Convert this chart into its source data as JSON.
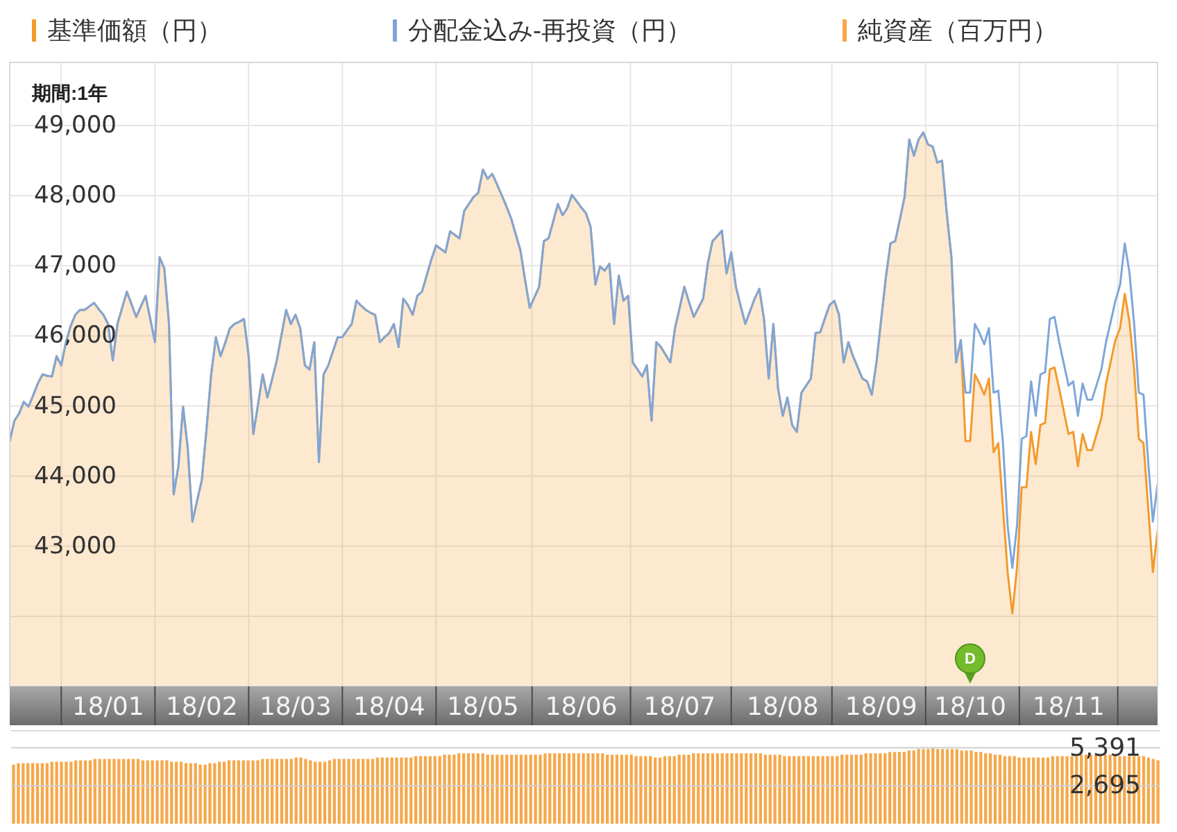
{
  "chart_data": [
    {
      "type": "area",
      "subtitle": "期間:1年",
      "legend": "top",
      "grid": true,
      "categories": [
        null,
        null,
        null,
        null,
        null,
        null,
        null,
        null,
        null,
        null,
        null,
        null,
        null,
        null,
        null,
        null,
        null,
        null,
        null,
        null,
        null,
        "18/01",
        null,
        null,
        null,
        null,
        null,
        null,
        null,
        null,
        null,
        null,
        null,
        null,
        null,
        null,
        null,
        null,
        null,
        null,
        null,
        "18/02",
        null,
        null,
        null,
        null,
        null,
        null,
        null,
        null,
        null,
        null,
        null,
        null,
        null,
        null,
        null,
        null,
        null,
        null,
        null,
        "18/03",
        null,
        null,
        null,
        null,
        null,
        null,
        null,
        null,
        null,
        null,
        null,
        null,
        null,
        null,
        null,
        null,
        null,
        null,
        null,
        "18/04",
        null,
        null,
        null,
        null,
        null,
        null,
        null,
        null,
        null,
        null,
        null,
        null,
        null,
        null,
        null,
        null,
        null,
        null,
        null,
        "18/05",
        null,
        null,
        null,
        null,
        null,
        null,
        null,
        null,
        null,
        null,
        null,
        null,
        null,
        null,
        null,
        null,
        null,
        null,
        null,
        null,
        "18/06",
        null,
        null,
        null,
        null,
        null,
        null,
        null,
        null,
        null,
        null,
        null,
        null,
        null,
        null,
        null,
        null,
        null,
        null,
        null,
        null,
        "18/07",
        null,
        null,
        null,
        null,
        null,
        null,
        null,
        null,
        null,
        null,
        null,
        null,
        null,
        null,
        null,
        null,
        null,
        null,
        null,
        null,
        null,
        "18/08",
        null,
        null,
        null,
        null,
        null,
        null,
        null,
        null,
        null,
        null,
        null,
        null,
        null,
        null,
        null,
        null,
        null,
        null,
        null,
        null,
        "18/09",
        null,
        null,
        null,
        null,
        null,
        null,
        null,
        null,
        null,
        null,
        null,
        null,
        null,
        null,
        null,
        null,
        null,
        null,
        "18/10",
        null,
        null,
        null,
        null,
        null,
        null,
        null,
        null,
        null,
        null,
        null,
        null,
        null,
        null,
        null,
        null,
        null,
        null,
        null,
        null,
        "18/11",
        null,
        null,
        null,
        null,
        null,
        null,
        null,
        null,
        null,
        null,
        null,
        null,
        null,
        null,
        null,
        null,
        null,
        null,
        null
      ],
      "ylim": [
        41000,
        49900
      ],
      "yticks": [
        {
          "value": 42000,
          "label": null
        },
        {
          "value": 43000,
          "label": "43,000"
        },
        {
          "value": 44000,
          "label": "44,000"
        },
        {
          "value": 45000,
          "label": "45,000"
        },
        {
          "value": 46000,
          "label": "46,000"
        },
        {
          "value": 47000,
          "label": "47,000"
        },
        {
          "value": 48000,
          "label": "48,000"
        },
        {
          "value": 49000,
          "label": "49,000"
        }
      ],
      "annotations": [
        {
          "text": "D",
          "x": "18/10"
        }
      ],
      "series": [
        {
          "name": "基準価額（円）",
          "color": "#f39a2b",
          "values": [
            44500,
            44790,
            44890,
            45060,
            44990,
            45150,
            45320,
            45450,
            45430,
            45420,
            45710,
            45580,
            45910,
            46140,
            46300,
            46370,
            46370,
            46420,
            46470,
            46380,
            46300,
            46170,
            45650,
            46170,
            46400,
            46630,
            46450,
            46270,
            46420,
            46570,
            46240,
            45910,
            47120,
            46960,
            46170,
            43740,
            44140,
            44990,
            44400,
            43350,
            43650,
            43940,
            44660,
            45450,
            45980,
            45710,
            45900,
            46110,
            46170,
            46200,
            46240,
            45710,
            44600,
            45020,
            45450,
            45120,
            45380,
            45650,
            46010,
            46370,
            46170,
            46300,
            46110,
            45580,
            45520,
            45910,
            44200,
            45450,
            45580,
            45780,
            45980,
            45980,
            46080,
            46170,
            46500,
            46430,
            46370,
            46330,
            46300,
            45910,
            45980,
            46040,
            46170,
            45840,
            46530,
            46440,
            46300,
            46570,
            46630,
            46860,
            47090,
            47290,
            47240,
            47190,
            47490,
            47440,
            47390,
            47780,
            47880,
            47980,
            48040,
            48370,
            48240,
            48310,
            48160,
            48010,
            47850,
            47680,
            47450,
            47220,
            46800,
            46400,
            46550,
            46700,
            47350,
            47390,
            47630,
            47880,
            47720,
            47820,
            48010,
            47920,
            47830,
            47750,
            47550,
            46730,
            46990,
            46930,
            47030,
            46170,
            46860,
            46500,
            46570,
            45620,
            45520,
            45420,
            45580,
            44790,
            45910,
            45840,
            45730,
            45620,
            46110,
            46400,
            46700,
            46480,
            46270,
            46400,
            46530,
            47030,
            47350,
            47420,
            47500,
            46890,
            47190,
            46700,
            46430,
            46170,
            46350,
            46530,
            46670,
            46240,
            45390,
            46170,
            45250,
            44860,
            45120,
            44730,
            44630,
            45190,
            45290,
            45390,
            46040,
            46050,
            46250,
            46440,
            46500,
            46300,
            45620,
            45910,
            45710,
            45550,
            45390,
            45350,
            45160,
            45620,
            46230,
            46830,
            47320,
            47350,
            47660,
            47980,
            48800,
            48570,
            48800,
            48900,
            48730,
            48700,
            48470,
            48500,
            47750,
            47120,
            45620,
            45940,
            44500,
            44500,
            45450,
            45320,
            45160,
            45390,
            44340,
            44470,
            43550,
            42630,
            42040,
            42690,
            43840,
            43840,
            44630,
            44170,
            44730,
            44760,
            45520,
            45550,
            45250,
            44920,
            44600,
            44630,
            44140,
            44600,
            44370,
            44370,
            44600,
            44830,
            45320,
            45630,
            45940,
            46110,
            46600,
            46200,
            45520,
            44530,
            44470,
            43550,
            42630,
            43220
          ]
        },
        {
          "name": "分配金込み-再投資（円）",
          "type": "line",
          "color": "#7fa6d9",
          "values": [
            44500,
            44790,
            44890,
            45060,
            44990,
            45150,
            45320,
            45450,
            45430,
            45420,
            45710,
            45580,
            45910,
            46140,
            46300,
            46370,
            46370,
            46420,
            46470,
            46380,
            46300,
            46170,
            45650,
            46170,
            46400,
            46630,
            46450,
            46270,
            46420,
            46570,
            46240,
            45910,
            47120,
            46960,
            46170,
            43740,
            44140,
            44990,
            44400,
            43350,
            43650,
            43940,
            44660,
            45450,
            45980,
            45710,
            45900,
            46110,
            46170,
            46200,
            46240,
            45710,
            44600,
            45020,
            45450,
            45120,
            45380,
            45650,
            46010,
            46370,
            46170,
            46300,
            46110,
            45580,
            45520,
            45910,
            44200,
            45450,
            45580,
            45780,
            45980,
            45980,
            46080,
            46170,
            46500,
            46430,
            46370,
            46330,
            46300,
            45910,
            45980,
            46040,
            46170,
            45840,
            46530,
            46440,
            46300,
            46570,
            46630,
            46860,
            47090,
            47290,
            47240,
            47190,
            47490,
            47440,
            47390,
            47780,
            47880,
            47980,
            48040,
            48370,
            48240,
            48310,
            48160,
            48010,
            47850,
            47680,
            47450,
            47220,
            46800,
            46400,
            46550,
            46700,
            47350,
            47390,
            47630,
            47880,
            47720,
            47820,
            48010,
            47920,
            47830,
            47750,
            47550,
            46730,
            46990,
            46930,
            47030,
            46170,
            46860,
            46500,
            46570,
            45620,
            45520,
            45420,
            45580,
            44790,
            45910,
            45840,
            45730,
            45620,
            46110,
            46400,
            46700,
            46480,
            46270,
            46400,
            46530,
            47030,
            47350,
            47420,
            47500,
            46890,
            47190,
            46700,
            46430,
            46170,
            46350,
            46530,
            46670,
            46240,
            45390,
            46170,
            45250,
            44860,
            45120,
            44730,
            44630,
            45190,
            45290,
            45390,
            46040,
            46050,
            46250,
            46440,
            46500,
            46300,
            45620,
            45910,
            45710,
            45550,
            45390,
            45350,
            45160,
            45620,
            46230,
            46830,
            47320,
            47350,
            47660,
            47980,
            48800,
            48570,
            48800,
            48900,
            48730,
            48700,
            48470,
            48500,
            47750,
            47120,
            45620,
            45940,
            45190,
            45190,
            46170,
            46040,
            45880,
            46110,
            45190,
            45220,
            44470,
            43290,
            42690,
            43290,
            44530,
            44570,
            45350,
            44860,
            45450,
            45480,
            46240,
            46270,
            45910,
            45600,
            45290,
            45350,
            44860,
            45320,
            45090,
            45090,
            45300,
            45520,
            45910,
            46200,
            46500,
            46730,
            47320,
            46900,
            46170,
            45190,
            45160,
            44200,
            43350,
            43880
          ]
        }
      ]
    },
    {
      "type": "bar",
      "legend": "top",
      "grid": "y",
      "ylim": [
        0,
        6600
      ],
      "yticks": [
        {
          "value": 2695,
          "label": "2,695"
        },
        {
          "value": 5391,
          "label": "5,391"
        }
      ],
      "categories": [
        null,
        null,
        null,
        null,
        null,
        null,
        null,
        null,
        null,
        null,
        null,
        null,
        null,
        null,
        null,
        null,
        null,
        null,
        null,
        null,
        null,
        null,
        null,
        null,
        null,
        null,
        null,
        null,
        null,
        null,
        null,
        null,
        null,
        null,
        null,
        null,
        null,
        null,
        null,
        null,
        null,
        null,
        null,
        null,
        null,
        null,
        null,
        null,
        null,
        null,
        null,
        null,
        null,
        null,
        null,
        null,
        null,
        null,
        null,
        null,
        null,
        null,
        null,
        null,
        null,
        null,
        null,
        null,
        null,
        null,
        null,
        null,
        null,
        null,
        null,
        null,
        null,
        null,
        null,
        null,
        null,
        null,
        null,
        null,
        null,
        null,
        null,
        null,
        null,
        null,
        null,
        null,
        null,
        null,
        null,
        null,
        null,
        null,
        null,
        null,
        null,
        null,
        null,
        null,
        null,
        null,
        null,
        null,
        null,
        null,
        null,
        null,
        null,
        null,
        null,
        null,
        null,
        null,
        null,
        null,
        null,
        null,
        null,
        null,
        null,
        null,
        null,
        null,
        null,
        null,
        null,
        null,
        null,
        null,
        null,
        null,
        null,
        null,
        null,
        null,
        null,
        null,
        null,
        null,
        null,
        null,
        null,
        null,
        null,
        null,
        null,
        null,
        null,
        null,
        null,
        null,
        null,
        null,
        null,
        null,
        null,
        null,
        null,
        null,
        null,
        null,
        null,
        null,
        null,
        null,
        null,
        null,
        null,
        null,
        null,
        null,
        null,
        null,
        null,
        null,
        null,
        null,
        null,
        null,
        null,
        null,
        null,
        null,
        null,
        null,
        null,
        null,
        null,
        null,
        null,
        null,
        null,
        null,
        null,
        null,
        null,
        null,
        null,
        null,
        null,
        null,
        null,
        null,
        null,
        null,
        null,
        null,
        null,
        null,
        null,
        null,
        null,
        null,
        null,
        null,
        null,
        null,
        null,
        null,
        null,
        null,
        null,
        null,
        null,
        null,
        null,
        null,
        null,
        null,
        null,
        null,
        null,
        null,
        null,
        null
      ],
      "series": [
        {
          "name": "純資産（百万円）",
          "color": "#f6a84a",
          "values": [
            4200,
            4300,
            4300,
            4300,
            4300,
            4300,
            4300,
            4300,
            4400,
            4400,
            4400,
            4400,
            4400,
            4500,
            4500,
            4500,
            4500,
            4600,
            4600,
            4600,
            4600,
            4600,
            4600,
            4600,
            4600,
            4600,
            4600,
            4500,
            4500,
            4500,
            4500,
            4500,
            4500,
            4400,
            4400,
            4400,
            4300,
            4300,
            4300,
            4200,
            4200,
            4300,
            4300,
            4400,
            4400,
            4500,
            4500,
            4500,
            4500,
            4500,
            4500,
            4500,
            4600,
            4600,
            4600,
            4600,
            4600,
            4600,
            4600,
            4700,
            4700,
            4600,
            4500,
            4400,
            4400,
            4400,
            4500,
            4600,
            4600,
            4600,
            4600,
            4600,
            4600,
            4600,
            4600,
            4600,
            4700,
            4700,
            4700,
            4700,
            4700,
            4700,
            4700,
            4700,
            4800,
            4800,
            4800,
            4800,
            4800,
            4800,
            4900,
            4900,
            4900,
            5000,
            5000,
            5000,
            5000,
            5000,
            5000,
            4900,
            4900,
            4900,
            4900,
            4900,
            4900,
            4900,
            4900,
            4900,
            4900,
            4900,
            4900,
            5000,
            5000,
            5000,
            5000,
            5000,
            5000,
            5000,
            5000,
            5000,
            5000,
            5000,
            5000,
            5000,
            4900,
            4900,
            4900,
            4900,
            4900,
            4900,
            4800,
            4800,
            4800,
            4800,
            4700,
            4700,
            4800,
            4800,
            4800,
            4900,
            4900,
            4900,
            5000,
            5000,
            5000,
            5000,
            5000,
            5000,
            5000,
            5000,
            5000,
            5000,
            5000,
            5000,
            5000,
            5000,
            5000,
            4900,
            4900,
            4900,
            4900,
            4800,
            4800,
            4800,
            4800,
            4800,
            4800,
            4800,
            4800,
            4800,
            4800,
            4800,
            4800,
            4900,
            4900,
            4900,
            4900,
            4900,
            5000,
            5000,
            5000,
            5000,
            5000,
            5100,
            5100,
            5100,
            5100,
            5200,
            5200,
            5300,
            5300,
            5300,
            5391,
            5300,
            5300,
            5300,
            5300,
            5300,
            5200,
            5200,
            5200,
            5100,
            5100,
            5000,
            5000,
            4900,
            4900,
            4800,
            4800,
            4800,
            4700,
            4700,
            4700,
            4700,
            4700,
            4700,
            4700,
            4800,
            4800,
            4800,
            4800,
            4800,
            4800,
            4900,
            4900,
            4900,
            4900,
            4900,
            4900,
            4900,
            4900,
            4800,
            4800,
            4800,
            4800,
            4800,
            4800,
            4700,
            4600,
            4500
          ]
        }
      ]
    }
  ]
}
